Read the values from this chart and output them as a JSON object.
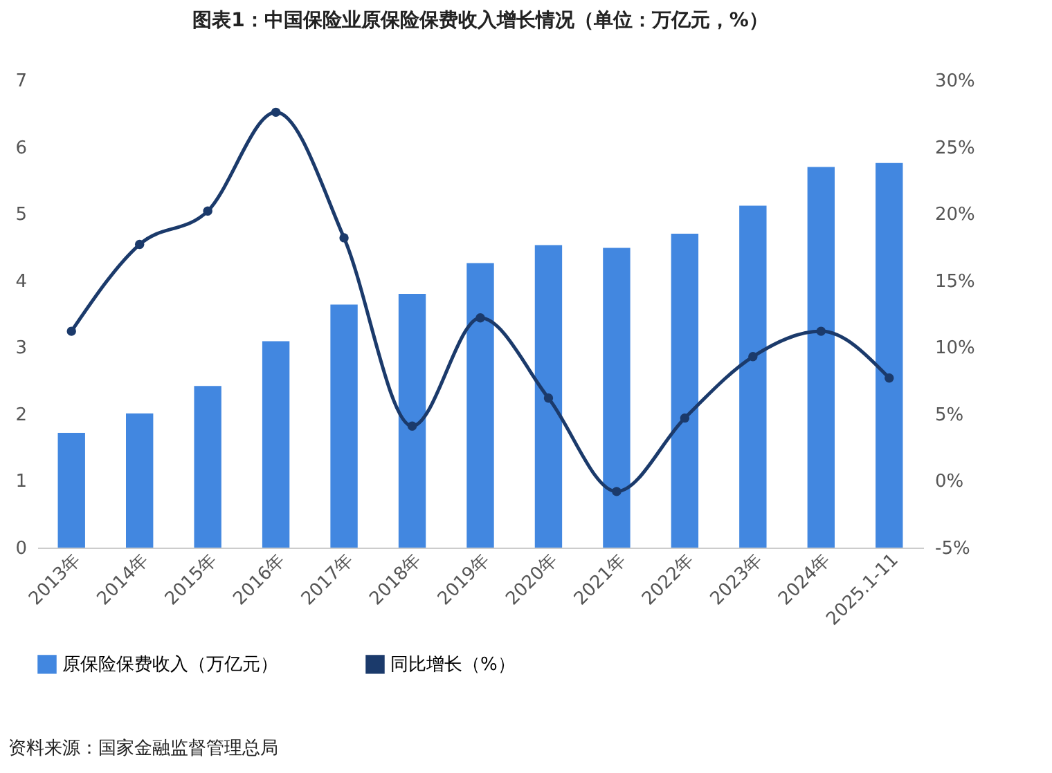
{
  "chart_data": {
    "type": "bar",
    "title": "图表1：中国保险业原保险保费收入增长情况（单位：万亿元，%）",
    "categories": [
      "2013年",
      "2014年",
      "2015年",
      "2016年",
      "2017年",
      "2018年",
      "2019年",
      "2020年",
      "2021年",
      "2022年",
      "2023年",
      "2024年",
      "2025.1-11"
    ],
    "series": [
      {
        "name": "原保险保费收入（万亿元）",
        "color": "#4287e0",
        "values": [
          1.72,
          2.01,
          2.42,
          3.09,
          3.64,
          3.8,
          4.26,
          4.53,
          4.49,
          4.7,
          5.12,
          5.7,
          5.76
        ]
      },
      {
        "name": "同比增长（%）",
        "type": "line",
        "axis": "y2",
        "color": "#1b3a6b",
        "values": [
          11.2,
          17.7,
          20.2,
          27.6,
          18.2,
          4.1,
          12.2,
          6.2,
          -0.8,
          4.7,
          9.3,
          11.2,
          7.7
        ]
      }
    ],
    "ylim": [
      0,
      7
    ],
    "yticks": [
      0,
      1,
      2,
      3,
      4,
      5,
      6,
      7
    ],
    "y2lim": [
      -5,
      30
    ],
    "y2ticks": [
      {
        "value": -5,
        "label": "-5%"
      },
      {
        "value": 0,
        "label": "0%"
      },
      {
        "value": 5,
        "label": "5%"
      },
      {
        "value": 10,
        "label": "10%"
      },
      {
        "value": 15,
        "label": "15%"
      },
      {
        "value": 20,
        "label": "20%"
      },
      {
        "value": 25,
        "label": "25%"
      },
      {
        "value": 30,
        "label": "30%"
      }
    ],
    "marker": "circle",
    "grid": false,
    "legend": "bottom",
    "annotations": [
      "资料来源：国家金融监督管理总局"
    ]
  }
}
